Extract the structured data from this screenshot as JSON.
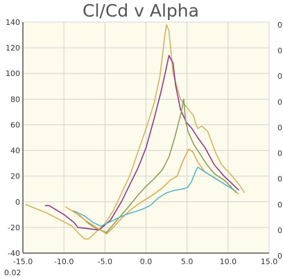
{
  "chart_data": {
    "type": "line",
    "title": "Cl/Cd v Alpha",
    "xlabel": "",
    "ylabel": "",
    "xlim": [
      -15,
      15
    ],
    "ylim": [
      -40,
      140
    ],
    "x_ticks": [
      "-15.0",
      "-10.0",
      "-5.0",
      "0.0",
      "5.0",
      "10.0",
      "15.0"
    ],
    "y_ticks": [
      "-40",
      "-20",
      "0",
      "20",
      "40",
      "60",
      "80",
      "100",
      "120",
      "140"
    ],
    "right_axis_tick_label": "0",
    "corner_label": "0.02",
    "grid": true,
    "colors": {
      "plot_bg": "#fdfbeb",
      "grid": "#d2d2d2",
      "axis": "#555555"
    },
    "series": [
      {
        "color": "#d4b464",
        "values": [
          [
            -14.7,
            -2
          ],
          [
            -12,
            -9
          ],
          [
            -9,
            -19
          ],
          [
            -8,
            -26
          ],
          [
            -7.5,
            -29
          ],
          [
            -7,
            -29
          ],
          [
            -6.5,
            -26
          ],
          [
            -5,
            -17
          ],
          [
            -4,
            -7
          ],
          [
            -2,
            20
          ],
          [
            0,
            57
          ],
          [
            1,
            77
          ],
          [
            1.7,
            98
          ],
          [
            2.3,
            130
          ],
          [
            2.5,
            138
          ],
          [
            2.8,
            133
          ],
          [
            3.3,
            100
          ],
          [
            4.2,
            80
          ],
          [
            5.3,
            71
          ],
          [
            5.8,
            67
          ],
          [
            6,
            62
          ],
          [
            6.3,
            57
          ],
          [
            6.8,
            59
          ],
          [
            7.5,
            55
          ],
          [
            8.5,
            38
          ],
          [
            9.2,
            29
          ],
          [
            10.5,
            20
          ],
          [
            11.5,
            12
          ],
          [
            12,
            7
          ]
        ]
      },
      {
        "color": "#8c3a8c",
        "values": [
          [
            -12.3,
            -3
          ],
          [
            -11.8,
            -3
          ],
          [
            -10,
            -10
          ],
          [
            -8.8,
            -16
          ],
          [
            -8.3,
            -20
          ],
          [
            -7,
            -21
          ],
          [
            -5.7,
            -22
          ],
          [
            -4.3,
            -14
          ],
          [
            -3,
            0
          ],
          [
            -2,
            13
          ],
          [
            -1,
            26
          ],
          [
            0,
            42
          ],
          [
            1,
            65
          ],
          [
            1.8,
            85
          ],
          [
            2.4,
            102
          ],
          [
            2.8,
            114
          ],
          [
            3.3,
            108
          ],
          [
            3.6,
            91
          ],
          [
            4.2,
            72
          ],
          [
            4.9,
            62
          ],
          [
            5.6,
            57
          ],
          [
            6.3,
            50
          ],
          [
            7.2,
            42
          ],
          [
            8.3,
            29
          ],
          [
            9.5,
            20
          ],
          [
            10.5,
            14
          ],
          [
            11.3,
            9
          ]
        ]
      },
      {
        "color": "#8aa05c",
        "values": [
          [
            -9,
            -7
          ],
          [
            -8,
            -11
          ],
          [
            -7,
            -17
          ],
          [
            -6,
            -21
          ],
          [
            -4.8,
            -24
          ],
          [
            -3.5,
            -14
          ],
          [
            -2,
            -3
          ],
          [
            -1,
            5
          ],
          [
            0,
            12
          ],
          [
            1,
            18
          ],
          [
            2,
            25
          ],
          [
            2.8,
            35
          ],
          [
            3.5,
            50
          ],
          [
            4.3,
            70
          ],
          [
            4.6,
            80
          ],
          [
            4.8,
            64
          ],
          [
            5.1,
            55
          ],
          [
            5.8,
            45
          ],
          [
            6.3,
            40
          ],
          [
            7.3,
            30
          ],
          [
            8.3,
            22
          ],
          [
            9.5,
            17
          ],
          [
            10.3,
            12
          ],
          [
            11,
            7
          ]
        ]
      },
      {
        "color": "#e0a850",
        "values": [
          [
            -9.8,
            -4
          ],
          [
            -8.5,
            -9
          ],
          [
            -7.5,
            -14
          ],
          [
            -6.3,
            -19
          ],
          [
            -4.8,
            -25
          ],
          [
            -4,
            -20
          ],
          [
            -3,
            -13
          ],
          [
            -2,
            -7
          ],
          [
            -1,
            -2
          ],
          [
            0,
            2
          ],
          [
            1,
            6
          ],
          [
            2,
            11
          ],
          [
            3,
            17
          ],
          [
            3.8,
            20
          ],
          [
            4.5,
            32
          ],
          [
            5.2,
            41
          ],
          [
            5.7,
            39
          ],
          [
            6.3,
            31
          ],
          [
            7.2,
            23
          ],
          [
            8.3,
            19
          ],
          [
            9.5,
            14
          ],
          [
            10.5,
            10
          ],
          [
            11.3,
            6
          ]
        ]
      },
      {
        "color": "#5ab4c8",
        "values": [
          [
            -8.8,
            -7
          ],
          [
            -7.5,
            -11
          ],
          [
            -6.5,
            -16
          ],
          [
            -5.5,
            -19
          ],
          [
            -4.5,
            -16
          ],
          [
            -3.5,
            -13
          ],
          [
            -2.5,
            -10
          ],
          [
            -1.5,
            -8
          ],
          [
            -0.5,
            -6
          ],
          [
            0.5,
            -3
          ],
          [
            1.5,
            3
          ],
          [
            2.5,
            7
          ],
          [
            3.5,
            9
          ],
          [
            4.5,
            10
          ],
          [
            5,
            11
          ],
          [
            5.5,
            15
          ],
          [
            6,
            23
          ],
          [
            6.3,
            27
          ],
          [
            7,
            24
          ],
          [
            8,
            20
          ],
          [
            9,
            16
          ],
          [
            10,
            12
          ],
          [
            11,
            8
          ]
        ]
      }
    ]
  }
}
